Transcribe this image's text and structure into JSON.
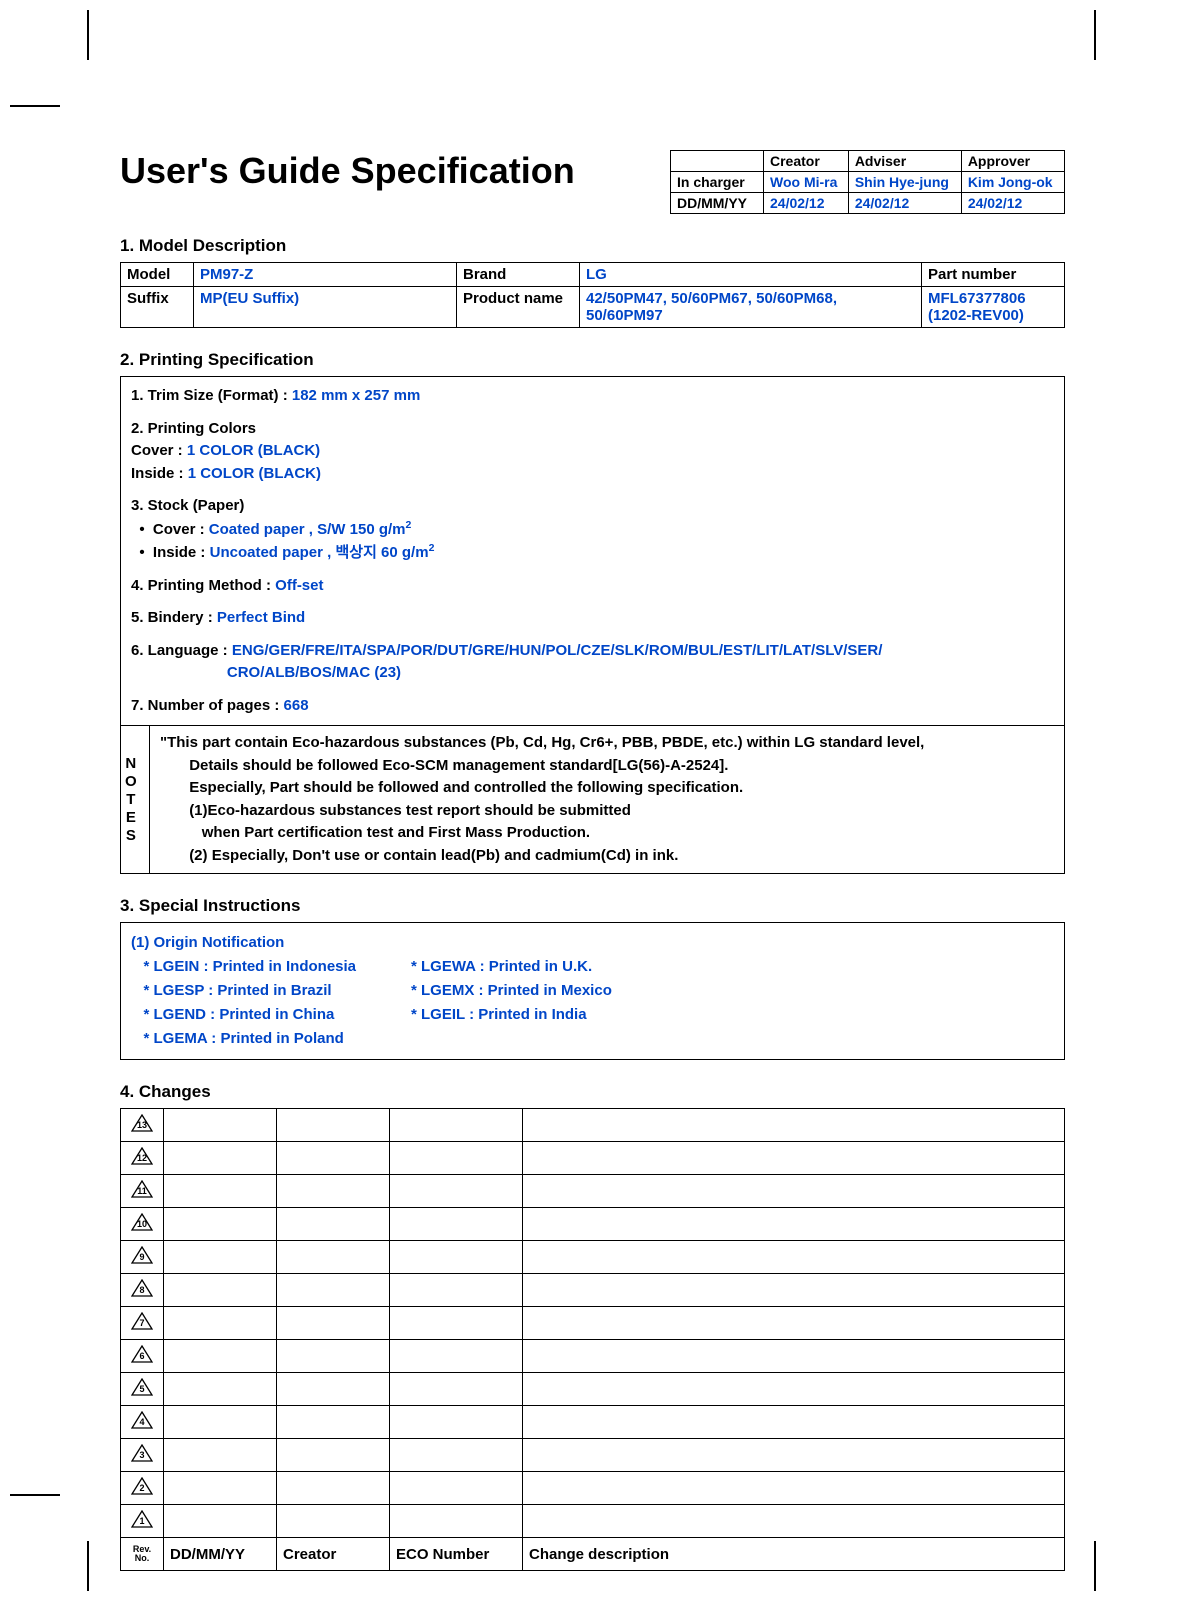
{
  "title": "User's Guide Specification",
  "approval": {
    "headers": [
      "",
      "Creator",
      "Adviser",
      "Approver"
    ],
    "rows": [
      {
        "label": "In charger",
        "creator": "Woo Mi-ra",
        "adviser": "Shin Hye-jung",
        "approver": "Kim Jong-ok"
      },
      {
        "label": "DD/MM/YY",
        "creator": "24/02/12",
        "adviser": "24/02/12",
        "approver": "24/02/12"
      }
    ]
  },
  "section1": {
    "heading": "1. Model Description",
    "rows": {
      "model_label": "Model",
      "model_value": "PM97-Z",
      "brand_label": "Brand",
      "brand_value": "LG",
      "partnum_label": "Part number",
      "suffix_label": "Suffix",
      "suffix_value": "MP(EU Suffix)",
      "prodname_label": "Product name",
      "prodname_value": "42/50PM47, 50/60PM67, 50/60PM68, 50/60PM97",
      "partnum_value1": "MFL67377806",
      "partnum_value2": "(1202-REV00)"
    }
  },
  "section2": {
    "heading": "2. Printing Specification",
    "trim_label": "1. Trim Size (Format) : ",
    "trim_value": "182 mm x 257 mm",
    "colors_label": "2. Printing Colors",
    "cover_color_label": " Cover : ",
    "cover_color_value": "1 COLOR (BLACK)",
    "inside_color_label": " Inside : ",
    "inside_color_value": "1 COLOR (BLACK)",
    "stock_label": "3. Stock (Paper)",
    "stock_cover_label": "Cover : ",
    "stock_cover_value": "Coated paper , S/W 150 g/m",
    "stock_inside_label": "Inside : ",
    "stock_inside_value": "Uncoated paper , 백상지 60 g/m",
    "method_label": "4. Printing Method : ",
    "method_value": "Off-set",
    "bindery_label": "5. Bindery  : ",
    "bindery_value": "Perfect Bind",
    "lang_label": "6. Language : ",
    "lang_value1": "ENG/GER/FRE/ITA/SPA/POR/DUT/GRE/HUN/POL/CZE/SLK/ROM/BUL/EST/LIT/LAT/SLV/SER/",
    "lang_value2": "CRO/ALB/BOS/MAC (23)",
    "pages_label": "7. Number of pages : ",
    "pages_value": "668",
    "notes_label": "N\nO\nT\nE\nS",
    "notes_line1": "\"This part contain Eco-hazardous substances (Pb, Cd, Hg, Cr6+, PBB, PBDE, etc.) within LG standard level,",
    "notes_line2": "Details should be followed Eco-SCM management standard[LG(56)-A-2524].",
    "notes_line3": "Especially, Part should be followed and controlled the following specification.",
    "notes_line4": "(1)Eco-hazardous substances test report should be submitted",
    "notes_line5": "when  Part certification test and First Mass Production.",
    "notes_line6": "(2) Especially, Don't use or contain lead(Pb) and cadmium(Cd) in ink."
  },
  "section3": {
    "heading": "3. Special Instructions",
    "origin_title": "(1) Origin Notification",
    "col1": [
      "   * LGEIN : Printed in Indonesia",
      "   * LGESP : Printed in Brazil",
      "   * LGEND : Printed in China",
      "   * LGEMA : Printed in Poland"
    ],
    "col2": [
      "* LGEWA : Printed in U.K.",
      "* LGEMX : Printed in Mexico",
      "* LGEIL : Printed in India"
    ]
  },
  "section4": {
    "heading": "4. Changes",
    "rev_numbers": [
      "13",
      "12",
      "11",
      "10",
      "9",
      "8",
      "7",
      "6",
      "5",
      "4",
      "3",
      "2",
      "1"
    ],
    "footer": {
      "rev": "Rev.\nNo.",
      "date": "DD/MM/YY",
      "creator": "Creator",
      "eco": "ECO Number",
      "desc": "Change description"
    },
    "col_widths": {
      "rev": "36px",
      "date": "100px",
      "creator": "100px",
      "eco": "120px"
    }
  },
  "colors": {
    "blue": "#0046c8",
    "black": "#000000"
  }
}
